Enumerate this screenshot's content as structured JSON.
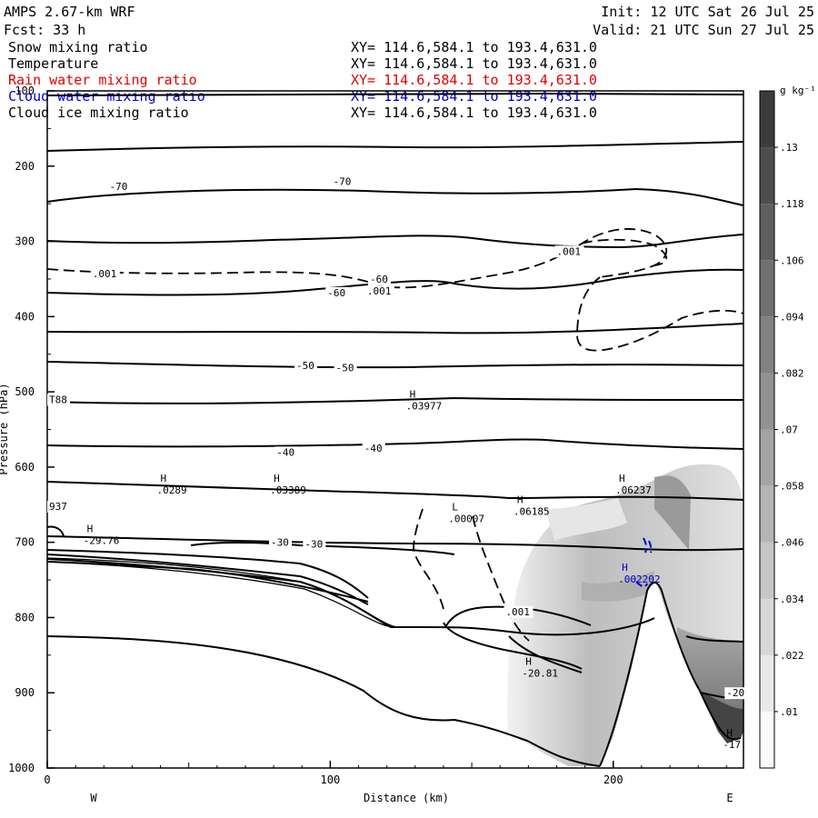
{
  "header": {
    "model": "AMPS 2.67-km WRF",
    "init": "Init: 12 UTC Sat 26 Jul 25",
    "forecast": "Fcst:   33 h",
    "valid": "Valid: 21 UTC Sun 27 Jul 25"
  },
  "fields": [
    {
      "name": "Snow mixing ratio",
      "xy": "XY= 114.6,584.1 to 193.4,631.0",
      "color": "#000000"
    },
    {
      "name": "Temperature",
      "xy": "XY= 114.6,584.1 to 193.4,631.0",
      "color": "#000000"
    },
    {
      "name": "Rain water mixing ratio",
      "xy": "XY= 114.6,584.1 to 193.4,631.0",
      "color": "#e00000"
    },
    {
      "name": "Cloud water mixing ratio",
      "xy": "XY= 114.6,584.1 to 193.4,631.0",
      "color": "#0000cc"
    },
    {
      "name": "Cloud ice mixing ratio",
      "xy": "XY= 114.6,584.1 to 193.4,631.0",
      "color": "#000000"
    }
  ],
  "chart_data": {
    "type": "cross-section contour",
    "xlabel": "Distance (km)",
    "ylabel": "Pressure (hPa)",
    "xlim": [
      0,
      246
    ],
    "ylim": [
      1000,
      100
    ],
    "x_ticks": [
      "0",
      "100",
      "200"
    ],
    "y_ticks": [
      "100",
      "200",
      "300",
      "400",
      "500",
      "600",
      "700",
      "800",
      "900",
      "1000"
    ],
    "left_end_label": "W",
    "right_end_label": "E",
    "colorbar": {
      "unit": "g kg⁻¹",
      "levels": [
        ".01",
        ".022",
        ".034",
        ".046",
        ".058",
        ".07",
        ".082",
        ".094",
        ".106",
        ".118",
        ".13"
      ]
    },
    "temperature_isotherm_labels": [
      {
        "text": "-70",
        "x": 22,
        "p": 227
      },
      {
        "text": "-70",
        "x": 101,
        "p": 220
      },
      {
        "text": "-60",
        "x": 114,
        "p": 350
      },
      {
        "text": "-60",
        "x": 99,
        "p": 368
      },
      {
        "text": "-50",
        "x": 88,
        "p": 465
      },
      {
        "text": "-50",
        "x": 102,
        "p": 468
      },
      {
        "text": "-40",
        "x": 81,
        "p": 580
      },
      {
        "text": "-40",
        "x": 112,
        "p": 575
      },
      {
        "text": "-30",
        "x": 79,
        "p": 700
      },
      {
        "text": "-30",
        "x": 91,
        "p": 702
      },
      {
        "text": "-20",
        "x": 240,
        "p": 900
      }
    ],
    "snow_labels": [
      {
        "text": ".001",
        "x": 16,
        "p": 343
      },
      {
        "text": ".001",
        "x": 113,
        "p": 366
      },
      {
        "text": ".001",
        "x": 180,
        "p": 313
      },
      {
        "text": ".001",
        "x": 162,
        "p": 792
      }
    ],
    "extrema_labels": [
      {
        "mark": "H",
        "value": ".03977",
        "x": 128,
        "p": 510
      },
      {
        "mark": "H",
        "value": ".0289",
        "x": 40,
        "p": 622
      },
      {
        "mark": "H",
        "value": ".03389",
        "x": 80,
        "p": 622
      },
      {
        "mark": "H",
        "value": "-29.76",
        "x": 14,
        "p": 689
      },
      {
        "mark": "L",
        "value": ".00007",
        "x": 143,
        "p": 660
      },
      {
        "mark": "H",
        "value": ".06185",
        "x": 166,
        "p": 650
      },
      {
        "mark": "H",
        "value": ".06237",
        "x": 202,
        "p": 622
      },
      {
        "mark": "H",
        "value": "-20.81",
        "x": 169,
        "p": 865
      },
      {
        "mark": "H",
        "value": "-17",
        "x": 240,
        "p": 960
      },
      {
        "mark": "H",
        "value": ".002202",
        "x": 203,
        "p": 740
      }
    ],
    "edge_labels": [
      {
        "text": "T88",
        "x": 0,
        "p": 510
      },
      {
        "text": "937",
        "x": 0,
        "p": 652
      }
    ]
  }
}
